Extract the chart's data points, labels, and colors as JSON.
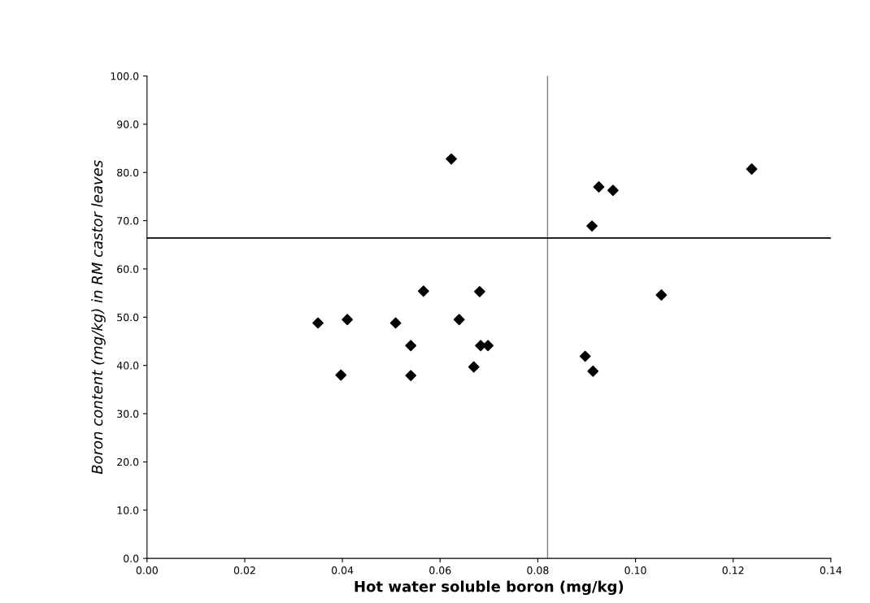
{
  "chart_data": {
    "type": "scatter",
    "xlabel": "Hot water soluble boron (mg/kg)",
    "ylabel": "Boron content (mg/kg) in RM castor leaves",
    "x": [
      0.035,
      0.041,
      0.0397,
      0.0509,
      0.054,
      0.054,
      0.0566,
      0.0623,
      0.0639,
      0.0669,
      0.0681,
      0.0683,
      0.0698,
      0.0897,
      0.0911,
      0.0913,
      0.0925,
      0.0954,
      0.1053,
      0.1238
    ],
    "series": [
      {
        "color": "#000000",
        "values": [
          48.8,
          49.5,
          38.0,
          48.8,
          44.1,
          37.9,
          55.4,
          82.8,
          49.5,
          39.7,
          55.3,
          44.1,
          44.1,
          41.9,
          68.9,
          38.8,
          77.0,
          76.3,
          54.6,
          80.7
        ]
      }
    ],
    "marker": "diamond",
    "grid": false,
    "legend": false,
    "xlim": [
      0,
      0.14
    ],
    "xticks": [
      {
        "value": 0,
        "label": "0.00"
      },
      {
        "value": 0.02,
        "label": "0.02"
      },
      {
        "value": 0.04,
        "label": "0.04"
      },
      {
        "value": 0.06,
        "label": "0.06"
      },
      {
        "value": 0.08,
        "label": "0.08"
      },
      {
        "value": 0.1,
        "label": "0.10"
      },
      {
        "value": 0.12,
        "label": "0.12"
      },
      {
        "value": 0.14,
        "label": "0.14"
      }
    ],
    "ylim": [
      0,
      100
    ],
    "yticks": [
      {
        "value": 0,
        "label": "0.0"
      },
      {
        "value": 10,
        "label": "10.0"
      },
      {
        "value": 20,
        "label": "20.0"
      },
      {
        "value": 30,
        "label": "30.0"
      },
      {
        "value": 40,
        "label": "40.0"
      },
      {
        "value": 50,
        "label": "50.0"
      },
      {
        "value": 60,
        "label": "60.0"
      },
      {
        "value": 70,
        "label": "70.0"
      },
      {
        "value": 80,
        "label": "80.0"
      },
      {
        "value": 90,
        "label": "90.0"
      },
      {
        "value": 100,
        "label": "100.0"
      }
    ],
    "ref_lines": [
      {
        "axis": "x",
        "value": 0.082,
        "color": "#808080"
      },
      {
        "axis": "y",
        "value": 66.4,
        "color": "#000000"
      }
    ]
  }
}
